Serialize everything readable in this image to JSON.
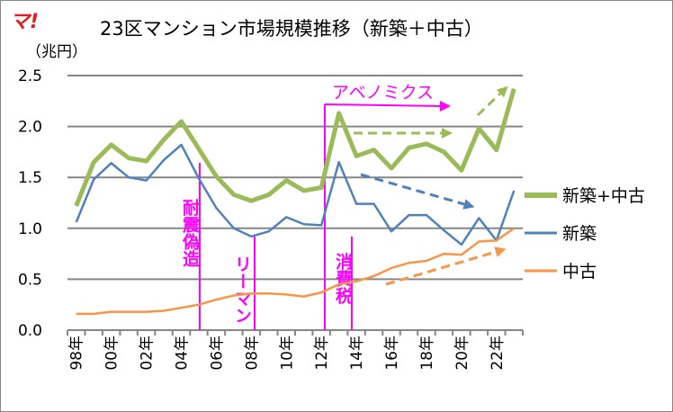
{
  "logo": "マ!",
  "chart_data": {
    "type": "line",
    "title": "23区マンション市場規模推移（新築＋中古）",
    "ylabel": "（兆円）",
    "ylim": [
      0,
      2.5
    ],
    "yticks": [
      "0.0",
      "0.5",
      "1.0",
      "1.5",
      "2.0",
      "2.5"
    ],
    "grid": true,
    "legend": "right",
    "x": [
      1998,
      1999,
      2000,
      2001,
      2002,
      2003,
      2004,
      2005,
      2006,
      2007,
      2008,
      2009,
      2010,
      2011,
      2012,
      2013,
      2014,
      2015,
      2016,
      2017,
      2018,
      2019,
      2020,
      2021,
      2022,
      2023
    ],
    "xtick_labels": [
      "98年",
      "00年",
      "02年",
      "04年",
      "06年",
      "08年",
      "10年",
      "12年",
      "14年",
      "16年",
      "18年",
      "20年",
      "22年"
    ],
    "series": [
      {
        "name": "新築+中古",
        "color": "#9bbb59",
        "values": [
          1.22,
          1.65,
          1.82,
          1.69,
          1.66,
          1.87,
          2.05,
          1.78,
          1.51,
          1.33,
          1.27,
          1.33,
          1.47,
          1.37,
          1.4,
          2.13,
          1.71,
          1.77,
          1.59,
          1.79,
          1.83,
          1.75,
          1.57,
          1.98,
          1.77,
          2.37
        ]
      },
      {
        "name": "新築",
        "color": "#4f81bd",
        "values": [
          1.06,
          1.48,
          1.64,
          1.5,
          1.47,
          1.67,
          1.82,
          1.49,
          1.2,
          1.0,
          0.92,
          0.97,
          1.11,
          1.04,
          1.03,
          1.65,
          1.24,
          1.24,
          0.97,
          1.13,
          1.13,
          0.98,
          0.84,
          1.1,
          0.88,
          1.37
        ]
      },
      {
        "name": "中古",
        "color": "#f79646",
        "values": [
          0.16,
          0.16,
          0.18,
          0.18,
          0.18,
          0.19,
          0.22,
          0.25,
          0.3,
          0.34,
          0.36,
          0.36,
          0.35,
          0.33,
          0.37,
          0.45,
          0.48,
          0.53,
          0.61,
          0.66,
          0.68,
          0.75,
          0.74,
          0.87,
          0.88,
          1.0
        ]
      }
    ],
    "annotations": {
      "taishin": "耐震偽造",
      "lehman": "リーマン",
      "shohizei": "消費税",
      "abenomics": "アベノミクス",
      "color": "#ff00ff"
    }
  }
}
